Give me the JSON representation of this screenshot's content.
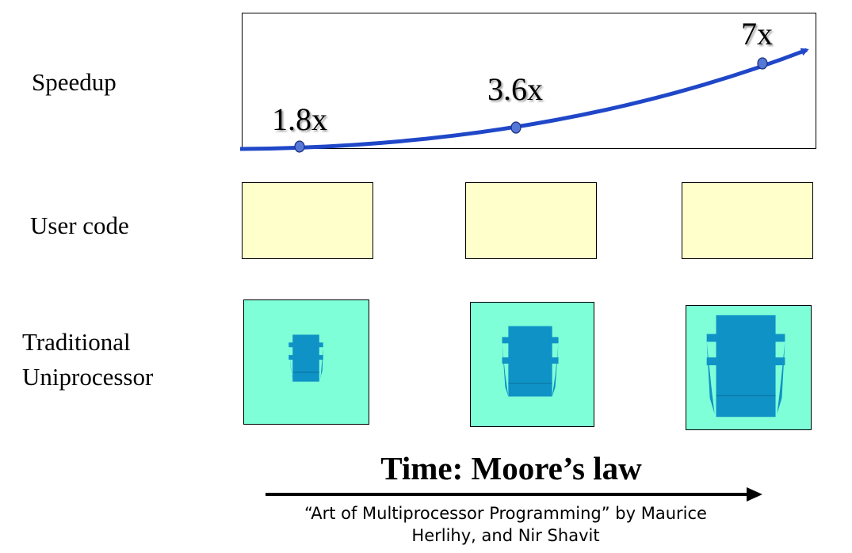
{
  "rows": {
    "speedup": "Speedup",
    "user_code": "User code",
    "uniprocessor_line1": "Traditional",
    "uniprocessor_line2": "Uniprocessor"
  },
  "speedup_values": [
    "1.8x",
    "3.6x",
    "7x"
  ],
  "time_title": "Time: Moore’s law",
  "citation_line1": "“Art of Multiprocessor Programming” by Maurice",
  "citation_line2": "Herlihy, and Nir Shavit",
  "colors": {
    "curve": "#1f47c8",
    "point": "#5577d6",
    "user_code_fill": "#ffffcc",
    "processor_bg": "#7fffd8",
    "chip": "#0f92c6",
    "chip_dark": "#0b7aa8"
  }
}
